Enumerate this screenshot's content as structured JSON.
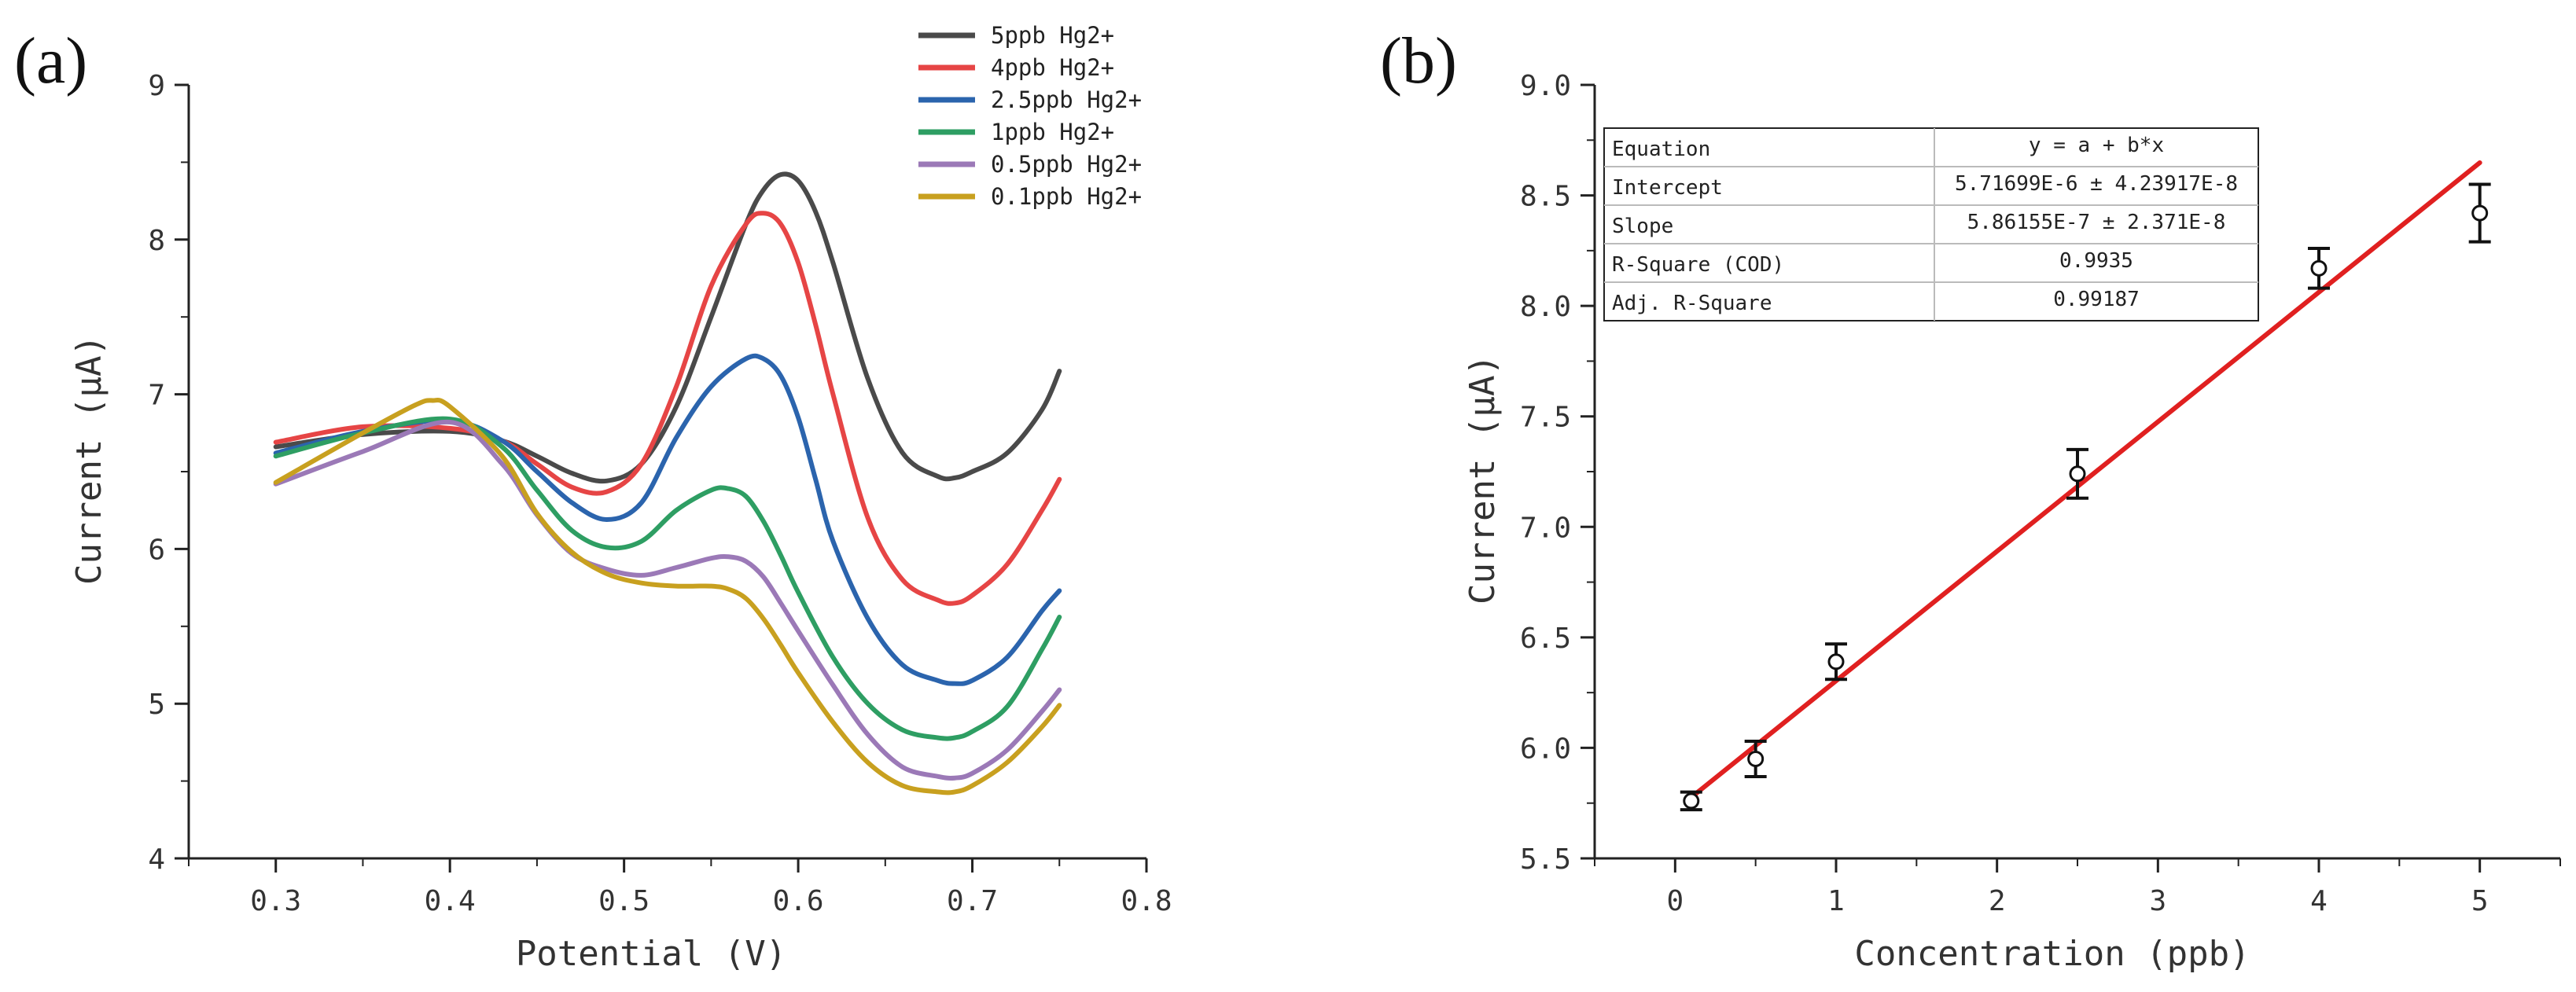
{
  "chart_data": [
    {
      "type": "line",
      "panel_label": "(a)",
      "xlabel": "Potential (V)",
      "ylabel": "Current (μA)",
      "xlim": [
        0.25,
        0.8
      ],
      "ylim": [
        4,
        9
      ],
      "x_ticks": [
        "0.3",
        "0.4",
        "0.5",
        "0.6",
        "0.7",
        "0.8"
      ],
      "y_ticks": [
        "4",
        "5",
        "6",
        "7",
        "8",
        "9"
      ],
      "legend_position": "top-right",
      "series": [
        {
          "name": "5ppb Hg2+",
          "color": "#4a4a4a",
          "x": [
            0.3,
            0.35,
            0.4,
            0.43,
            0.45,
            0.47,
            0.49,
            0.51,
            0.53,
            0.55,
            0.57,
            0.58,
            0.59,
            0.6,
            0.61,
            0.62,
            0.64,
            0.66,
            0.68,
            0.69,
            0.7,
            0.72,
            0.74,
            0.75
          ],
          "y": [
            6.66,
            6.74,
            6.76,
            6.7,
            6.6,
            6.49,
            6.44,
            6.55,
            6.92,
            7.5,
            8.1,
            8.32,
            8.42,
            8.38,
            8.18,
            7.85,
            7.1,
            6.62,
            6.47,
            6.46,
            6.5,
            6.62,
            6.9,
            7.15
          ]
        },
        {
          "name": "4ppb Hg2+",
          "color": "#e64545",
          "x": [
            0.3,
            0.35,
            0.4,
            0.43,
            0.45,
            0.47,
            0.49,
            0.51,
            0.53,
            0.55,
            0.57,
            0.58,
            0.59,
            0.6,
            0.61,
            0.62,
            0.64,
            0.66,
            0.68,
            0.69,
            0.7,
            0.72,
            0.74,
            0.75
          ],
          "y": [
            6.69,
            6.79,
            6.78,
            6.7,
            6.55,
            6.4,
            6.37,
            6.55,
            7.05,
            7.7,
            8.1,
            8.17,
            8.1,
            7.85,
            7.45,
            7.0,
            6.2,
            5.8,
            5.67,
            5.65,
            5.7,
            5.9,
            6.25,
            6.45
          ]
        },
        {
          "name": "2.5ppb Hg2+",
          "color": "#2b64ad",
          "x": [
            0.3,
            0.35,
            0.4,
            0.43,
            0.45,
            0.47,
            0.49,
            0.51,
            0.53,
            0.55,
            0.57,
            0.58,
            0.59,
            0.6,
            0.61,
            0.62,
            0.64,
            0.66,
            0.68,
            0.69,
            0.7,
            0.72,
            0.74,
            0.75
          ],
          "y": [
            6.62,
            6.76,
            6.83,
            6.7,
            6.5,
            6.3,
            6.19,
            6.3,
            6.72,
            7.05,
            7.23,
            7.23,
            7.12,
            6.85,
            6.45,
            6.05,
            5.55,
            5.25,
            5.15,
            5.13,
            5.15,
            5.3,
            5.6,
            5.73
          ]
        },
        {
          "name": "1ppb Hg2+",
          "color": "#2e9e63",
          "x": [
            0.3,
            0.35,
            0.4,
            0.43,
            0.45,
            0.47,
            0.49,
            0.51,
            0.53,
            0.55,
            0.56,
            0.57,
            0.58,
            0.59,
            0.6,
            0.62,
            0.64,
            0.66,
            0.68,
            0.69,
            0.7,
            0.72,
            0.74,
            0.75
          ],
          "y": [
            6.6,
            6.75,
            6.84,
            6.66,
            6.38,
            6.12,
            6.01,
            6.05,
            6.25,
            6.38,
            6.39,
            6.34,
            6.18,
            5.96,
            5.72,
            5.3,
            5.0,
            4.83,
            4.78,
            4.78,
            4.82,
            4.98,
            5.35,
            5.56
          ]
        },
        {
          "name": "0.5ppb Hg2+",
          "color": "#9b79b7",
          "x": [
            0.3,
            0.35,
            0.4,
            0.43,
            0.45,
            0.47,
            0.49,
            0.51,
            0.53,
            0.55,
            0.56,
            0.57,
            0.58,
            0.59,
            0.6,
            0.62,
            0.64,
            0.66,
            0.68,
            0.69,
            0.7,
            0.72,
            0.74,
            0.75
          ],
          "y": [
            6.42,
            6.63,
            6.82,
            6.55,
            6.22,
            5.97,
            5.87,
            5.83,
            5.88,
            5.94,
            5.95,
            5.92,
            5.82,
            5.65,
            5.47,
            5.12,
            4.8,
            4.59,
            4.53,
            4.52,
            4.55,
            4.7,
            4.95,
            5.09
          ]
        },
        {
          "name": "0.1ppb Hg2+",
          "color": "#c8a01f",
          "x": [
            0.3,
            0.35,
            0.38,
            0.39,
            0.4,
            0.43,
            0.45,
            0.47,
            0.49,
            0.51,
            0.53,
            0.55,
            0.56,
            0.57,
            0.58,
            0.59,
            0.6,
            0.62,
            0.64,
            0.66,
            0.68,
            0.69,
            0.7,
            0.72,
            0.74,
            0.75
          ],
          "y": [
            6.43,
            6.75,
            6.93,
            6.96,
            6.92,
            6.6,
            6.23,
            5.98,
            5.84,
            5.78,
            5.76,
            5.76,
            5.74,
            5.68,
            5.55,
            5.38,
            5.2,
            4.88,
            4.62,
            4.47,
            4.43,
            4.43,
            4.47,
            4.62,
            4.85,
            4.99
          ]
        }
      ]
    },
    {
      "type": "scatter",
      "panel_label": "(b)",
      "xlabel": "Concentration (ppb)",
      "ylabel": "Current (μA)",
      "xlim": [
        -0.5,
        5.5
      ],
      "ylim": [
        5.5,
        9.0
      ],
      "x_ticks": [
        "0",
        "1",
        "2",
        "3",
        "4",
        "5"
      ],
      "y_ticks": [
        "5.5",
        "6.0",
        "6.5",
        "7.0",
        "7.5",
        "8.0",
        "8.5",
        "9.0"
      ],
      "points": [
        {
          "x": 0.1,
          "y": 5.76,
          "err": 0.04
        },
        {
          "x": 0.5,
          "y": 5.95,
          "err": 0.08
        },
        {
          "x": 1.0,
          "y": 6.39,
          "err": 0.08
        },
        {
          "x": 2.5,
          "y": 7.24,
          "err": 0.11
        },
        {
          "x": 4.0,
          "y": 8.17,
          "err": 0.09
        },
        {
          "x": 5.0,
          "y": 8.42,
          "err": 0.13
        }
      ],
      "fit": {
        "color": "#e02020",
        "x": [
          0.1,
          5.0
        ],
        "y": [
          5.776,
          8.648
        ]
      },
      "fit_table": [
        {
          "label": "Equation",
          "value": "y = a + b*x"
        },
        {
          "label": "Intercept",
          "value": "5.71699E-6 ± 4.23917E-8"
        },
        {
          "label": "Slope",
          "value": "5.86155E-7 ± 2.371E-8"
        },
        {
          "label": "R-Square (COD)",
          "value": "0.9935"
        },
        {
          "label": "Adj. R-Square",
          "value": "0.99187"
        }
      ]
    }
  ]
}
